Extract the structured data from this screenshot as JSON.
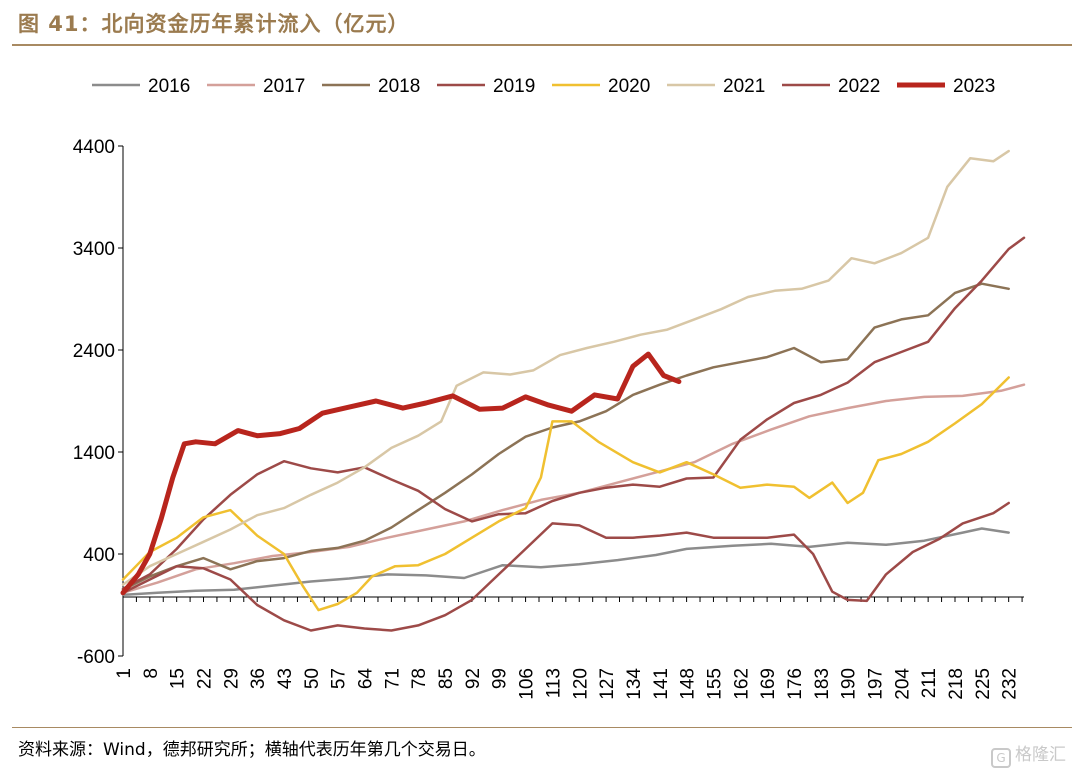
{
  "header": {
    "title": "图 41：北向资金历年累计流入（亿元）"
  },
  "footer": {
    "source": "资料来源：Wind，德邦研究所；横轴代表历年第几个交易日。",
    "watermark": "格隆汇",
    "watermark_logo": "G"
  },
  "chart_data": {
    "type": "line",
    "title": "图 41：北向资金历年累计流入（亿元）",
    "xlabel": "",
    "ylabel": "",
    "ylim": [
      -600,
      4400
    ],
    "yticks": [
      4400,
      3400,
      2400,
      1400,
      400,
      -600
    ],
    "xlim": [
      1,
      236
    ],
    "xticks": [
      1,
      8,
      15,
      22,
      29,
      36,
      43,
      50,
      57,
      64,
      71,
      78,
      85,
      92,
      99,
      106,
      113,
      120,
      127,
      134,
      141,
      148,
      155,
      162,
      169,
      176,
      183,
      190,
      197,
      204,
      211,
      218,
      225,
      232
    ],
    "legend_position": "top",
    "grid": false,
    "series": [
      {
        "name": "2016",
        "color": "#8c8c8c",
        "width": 2.5,
        "points": [
          [
            1,
            0
          ],
          [
            10,
            20
          ],
          [
            20,
            40
          ],
          [
            30,
            50
          ],
          [
            40,
            90
          ],
          [
            50,
            130
          ],
          [
            60,
            160
          ],
          [
            70,
            200
          ],
          [
            80,
            190
          ],
          [
            90,
            165
          ],
          [
            100,
            290
          ],
          [
            110,
            270
          ],
          [
            120,
            300
          ],
          [
            130,
            340
          ],
          [
            140,
            390
          ],
          [
            148,
            450
          ],
          [
            160,
            480
          ],
          [
            170,
            500
          ],
          [
            180,
            470
          ],
          [
            190,
            510
          ],
          [
            200,
            490
          ],
          [
            210,
            530
          ],
          [
            220,
            610
          ],
          [
            225,
            650
          ],
          [
            232,
            610
          ]
        ]
      },
      {
        "name": "2017",
        "color": "#d4a09a",
        "width": 2.5,
        "points": [
          [
            1,
            20
          ],
          [
            10,
            120
          ],
          [
            20,
            250
          ],
          [
            30,
            310
          ],
          [
            40,
            380
          ],
          [
            50,
            420
          ],
          [
            60,
            470
          ],
          [
            70,
            560
          ],
          [
            80,
            640
          ],
          [
            90,
            720
          ],
          [
            100,
            830
          ],
          [
            110,
            930
          ],
          [
            120,
            1000
          ],
          [
            130,
            1100
          ],
          [
            140,
            1200
          ],
          [
            150,
            1300
          ],
          [
            160,
            1480
          ],
          [
            170,
            1620
          ],
          [
            180,
            1750
          ],
          [
            190,
            1830
          ],
          [
            200,
            1900
          ],
          [
            210,
            1940
          ],
          [
            220,
            1950
          ],
          [
            230,
            2000
          ],
          [
            236,
            2060
          ]
        ]
      },
      {
        "name": "2018",
        "color": "#8c7356",
        "width": 2.5,
        "points": [
          [
            1,
            50
          ],
          [
            8,
            180
          ],
          [
            15,
            280
          ],
          [
            22,
            360
          ],
          [
            29,
            250
          ],
          [
            36,
            330
          ],
          [
            43,
            360
          ],
          [
            50,
            430
          ],
          [
            57,
            460
          ],
          [
            64,
            530
          ],
          [
            71,
            660
          ],
          [
            78,
            830
          ],
          [
            85,
            1000
          ],
          [
            92,
            1180
          ],
          [
            99,
            1380
          ],
          [
            106,
            1550
          ],
          [
            113,
            1640
          ],
          [
            120,
            1700
          ],
          [
            127,
            1800
          ],
          [
            134,
            1960
          ],
          [
            141,
            2060
          ],
          [
            148,
            2150
          ],
          [
            155,
            2230
          ],
          [
            162,
            2280
          ],
          [
            169,
            2330
          ],
          [
            176,
            2420
          ],
          [
            183,
            2280
          ],
          [
            190,
            2310
          ],
          [
            197,
            2620
          ],
          [
            204,
            2700
          ],
          [
            211,
            2740
          ],
          [
            218,
            2960
          ],
          [
            225,
            3050
          ],
          [
            232,
            3000
          ]
        ]
      },
      {
        "name": "2019",
        "color": "#9d4a48",
        "width": 2.5,
        "points": [
          [
            1,
            60
          ],
          [
            8,
            200
          ],
          [
            15,
            450
          ],
          [
            22,
            740
          ],
          [
            29,
            980
          ],
          [
            36,
            1180
          ],
          [
            43,
            1310
          ],
          [
            50,
            1240
          ],
          [
            57,
            1200
          ],
          [
            64,
            1250
          ],
          [
            71,
            1130
          ],
          [
            78,
            1020
          ],
          [
            85,
            840
          ],
          [
            92,
            720
          ],
          [
            99,
            790
          ],
          [
            106,
            800
          ],
          [
            113,
            920
          ],
          [
            120,
            1000
          ],
          [
            127,
            1050
          ],
          [
            134,
            1080
          ],
          [
            141,
            1060
          ],
          [
            148,
            1140
          ],
          [
            155,
            1150
          ],
          [
            162,
            1520
          ],
          [
            169,
            1720
          ],
          [
            176,
            1880
          ],
          [
            183,
            1960
          ],
          [
            190,
            2080
          ],
          [
            197,
            2280
          ],
          [
            204,
            2380
          ],
          [
            211,
            2480
          ],
          [
            218,
            2810
          ],
          [
            225,
            3080
          ],
          [
            232,
            3390
          ],
          [
            236,
            3500
          ]
        ]
      },
      {
        "name": "2020",
        "color": "#f0c030",
        "width": 2.5,
        "points": [
          [
            1,
            150
          ],
          [
            8,
            420
          ],
          [
            15,
            560
          ],
          [
            22,
            760
          ],
          [
            29,
            830
          ],
          [
            36,
            580
          ],
          [
            43,
            400
          ],
          [
            48,
            80
          ],
          [
            52,
            -150
          ],
          [
            57,
            -90
          ],
          [
            62,
            20
          ],
          [
            66,
            180
          ],
          [
            72,
            280
          ],
          [
            78,
            290
          ],
          [
            85,
            400
          ],
          [
            92,
            560
          ],
          [
            99,
            720
          ],
          [
            106,
            850
          ],
          [
            110,
            1150
          ],
          [
            113,
            1700
          ],
          [
            118,
            1700
          ],
          [
            125,
            1500
          ],
          [
            134,
            1300
          ],
          [
            141,
            1200
          ],
          [
            148,
            1300
          ],
          [
            155,
            1180
          ],
          [
            162,
            1050
          ],
          [
            169,
            1080
          ],
          [
            176,
            1060
          ],
          [
            180,
            950
          ],
          [
            186,
            1100
          ],
          [
            190,
            900
          ],
          [
            194,
            1000
          ],
          [
            198,
            1320
          ],
          [
            204,
            1380
          ],
          [
            211,
            1500
          ],
          [
            218,
            1680
          ],
          [
            225,
            1870
          ],
          [
            232,
            2130
          ]
        ]
      },
      {
        "name": "2021",
        "color": "#d8c7a6",
        "width": 2.5,
        "points": [
          [
            1,
            100
          ],
          [
            8,
            280
          ],
          [
            15,
            400
          ],
          [
            22,
            520
          ],
          [
            29,
            640
          ],
          [
            36,
            780
          ],
          [
            43,
            850
          ],
          [
            50,
            980
          ],
          [
            57,
            1100
          ],
          [
            64,
            1250
          ],
          [
            71,
            1440
          ],
          [
            78,
            1560
          ],
          [
            84,
            1700
          ],
          [
            88,
            2050
          ],
          [
            95,
            2180
          ],
          [
            102,
            2160
          ],
          [
            108,
            2200
          ],
          [
            115,
            2350
          ],
          [
            122,
            2420
          ],
          [
            129,
            2480
          ],
          [
            136,
            2550
          ],
          [
            143,
            2600
          ],
          [
            150,
            2700
          ],
          [
            157,
            2800
          ],
          [
            164,
            2920
          ],
          [
            171,
            2980
          ],
          [
            178,
            3000
          ],
          [
            185,
            3080
          ],
          [
            191,
            3300
          ],
          [
            197,
            3250
          ],
          [
            204,
            3350
          ],
          [
            211,
            3500
          ],
          [
            216,
            4000
          ],
          [
            222,
            4280
          ],
          [
            228,
            4250
          ],
          [
            232,
            4350
          ]
        ]
      },
      {
        "name": "2022",
        "color": "#9d4a48",
        "width": 2.5,
        "points": [
          [
            1,
            20
          ],
          [
            8,
            150
          ],
          [
            15,
            280
          ],
          [
            22,
            260
          ],
          [
            29,
            150
          ],
          [
            36,
            -100
          ],
          [
            43,
            -250
          ],
          [
            50,
            -350
          ],
          [
            57,
            -300
          ],
          [
            64,
            -330
          ],
          [
            71,
            -350
          ],
          [
            78,
            -300
          ],
          [
            85,
            -200
          ],
          [
            92,
            -50
          ],
          [
            99,
            200
          ],
          [
            106,
            450
          ],
          [
            113,
            700
          ],
          [
            120,
            680
          ],
          [
            127,
            560
          ],
          [
            134,
            560
          ],
          [
            141,
            580
          ],
          [
            148,
            610
          ],
          [
            155,
            560
          ],
          [
            162,
            560
          ],
          [
            169,
            560
          ],
          [
            176,
            590
          ],
          [
            181,
            400
          ],
          [
            186,
            30
          ],
          [
            190,
            -50
          ],
          [
            195,
            -60
          ],
          [
            200,
            200
          ],
          [
            207,
            420
          ],
          [
            214,
            550
          ],
          [
            220,
            700
          ],
          [
            228,
            800
          ],
          [
            232,
            900
          ]
        ]
      },
      {
        "name": "2023",
        "color": "#b8251d",
        "width": 5,
        "points": [
          [
            1,
            20
          ],
          [
            5,
            200
          ],
          [
            8,
            400
          ],
          [
            11,
            750
          ],
          [
            14,
            1150
          ],
          [
            17,
            1480
          ],
          [
            20,
            1500
          ],
          [
            25,
            1480
          ],
          [
            31,
            1610
          ],
          [
            36,
            1560
          ],
          [
            42,
            1580
          ],
          [
            47,
            1630
          ],
          [
            53,
            1780
          ],
          [
            60,
            1840
          ],
          [
            67,
            1900
          ],
          [
            74,
            1830
          ],
          [
            80,
            1880
          ],
          [
            87,
            1950
          ],
          [
            94,
            1820
          ],
          [
            100,
            1830
          ],
          [
            106,
            1940
          ],
          [
            112,
            1860
          ],
          [
            118,
            1800
          ],
          [
            124,
            1960
          ],
          [
            130,
            1920
          ],
          [
            134,
            2240
          ],
          [
            138,
            2360
          ],
          [
            142,
            2150
          ],
          [
            146,
            2090
          ]
        ]
      }
    ]
  }
}
